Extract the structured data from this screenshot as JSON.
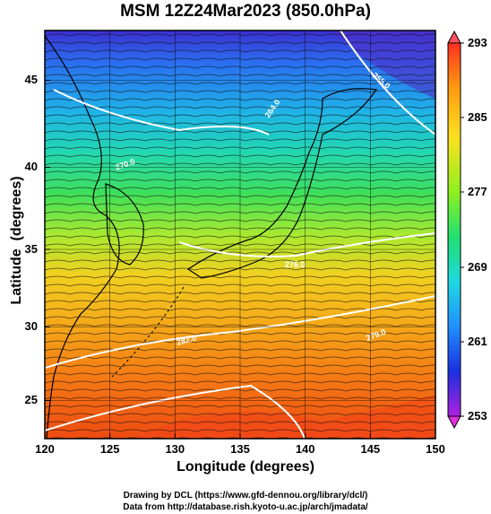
{
  "title": "MSM 12Z24Mar2023 (850.0hPa)",
  "x_axis": {
    "label": "Longitude (degrees)",
    "range": [
      120,
      150
    ],
    "ticks": [
      "120",
      "125",
      "130",
      "135",
      "140",
      "145",
      "150"
    ]
  },
  "y_axis": {
    "label": "Latitude  (degrees)",
    "range": [
      22.5,
      47.5
    ],
    "ticks": [
      "25",
      "30",
      "35",
      "40",
      "45"
    ]
  },
  "colorbar": {
    "range": [
      253,
      293
    ],
    "ticks": [
      "293",
      "285",
      "277",
      "269",
      "261",
      "253"
    ]
  },
  "contours": [
    {
      "label": "255.0"
    },
    {
      "label": "264.0"
    },
    {
      "label": "270.0"
    },
    {
      "label": "276.0"
    },
    {
      "label": "279.0"
    },
    {
      "label": "282.0"
    }
  ],
  "credits": {
    "line1": "Drawing by DCL (https://www.gfd-dennou.org/library/dcl/)",
    "line2": "Data from http://database.rish.kyoto-u.ac.jp/arch/jmadata/"
  }
}
